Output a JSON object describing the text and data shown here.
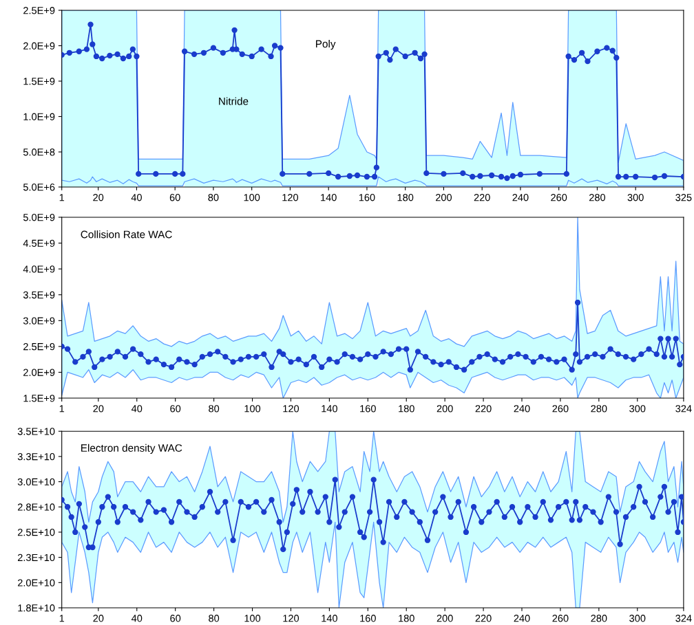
{
  "chart_data": [
    {
      "type": "line",
      "marker": "circle",
      "grid": false,
      "legend": false,
      "xlim": [
        1,
        325
      ],
      "xticks": [
        1,
        20,
        40,
        60,
        80,
        100,
        120,
        140,
        160,
        180,
        200,
        220,
        240,
        260,
        280,
        300,
        325
      ],
      "ylim": [
        5000000.0,
        2500000000.0
      ],
      "yticks": [
        {
          "value": 5000000.0,
          "label": "5.0E+6"
        },
        {
          "value": 500000000.0,
          "label": "5.0E+8"
        },
        {
          "value": 1000000000.0,
          "label": "1.0E+9"
        },
        {
          "value": 1500000000.0,
          "label": "1.5E+9"
        },
        {
          "value": 2000000000.0,
          "label": "2.0E+9"
        },
        {
          "value": 2500000000.0,
          "label": "2.5E+9"
        }
      ],
      "bands": [
        {
          "axis": "x",
          "from": 1,
          "to": 40,
          "color": "#ccffff"
        },
        {
          "axis": "x",
          "from": 65,
          "to": 115,
          "color": "#ccffff"
        },
        {
          "axis": "x",
          "from": 166,
          "to": 190,
          "color": "#ccffff"
        },
        {
          "axis": "x",
          "from": 265,
          "to": 290,
          "color": "#ccffff"
        }
      ],
      "annotations": [
        "Nitride",
        "Poly"
      ],
      "x": [
        1,
        5,
        10,
        14,
        16,
        17,
        19,
        22,
        26,
        30,
        33,
        36,
        38,
        40,
        41,
        50,
        60,
        64,
        65,
        70,
        75,
        80,
        85,
        90,
        91,
        92,
        95,
        100,
        105,
        110,
        112,
        115,
        116,
        130,
        140,
        145,
        151,
        155,
        160,
        164,
        165,
        166,
        170,
        172,
        175,
        180,
        185,
        188,
        190,
        191,
        200,
        210,
        215,
        219,
        225,
        230,
        233,
        236,
        240,
        250,
        264,
        265,
        268,
        272,
        275,
        280,
        285,
        288,
        290,
        291,
        295,
        300,
        310,
        315,
        325
      ],
      "series": [
        {
          "color": "#1a3ccc",
          "values": [
            1870000000.0,
            1900000000.0,
            1920000000.0,
            1950000000.0,
            2300000000.0,
            2020000000.0,
            1850000000.0,
            1820000000.0,
            1860000000.0,
            1880000000.0,
            1820000000.0,
            1850000000.0,
            1950000000.0,
            1850000000.0,
            190000000.0,
            190000000.0,
            190000000.0,
            190000000.0,
            1920000000.0,
            1880000000.0,
            1900000000.0,
            1970000000.0,
            1900000000.0,
            1950000000.0,
            2220000000.0,
            1950000000.0,
            1880000000.0,
            1850000000.0,
            1950000000.0,
            1850000000.0,
            2000000000.0,
            1970000000.0,
            190000000.0,
            190000000.0,
            200000000.0,
            150000000.0,
            160000000.0,
            170000000.0,
            150000000.0,
            150000000.0,
            280000000.0,
            1850000000.0,
            1900000000.0,
            1800000000.0,
            1950000000.0,
            1850000000.0,
            1900000000.0,
            1820000000.0,
            1880000000.0,
            200000000.0,
            190000000.0,
            200000000.0,
            150000000.0,
            160000000.0,
            170000000.0,
            150000000.0,
            130000000.0,
            160000000.0,
            180000000.0,
            190000000.0,
            190000000.0,
            1850000000.0,
            1800000000.0,
            1900000000.0,
            1780000000.0,
            1920000000.0,
            1970000000.0,
            1930000000.0,
            1830000000.0,
            150000000.0,
            150000000.0,
            150000000.0,
            140000000.0,
            160000000.0,
            150000000.0
          ],
          "lower": [
            100000000.0,
            80000000.0,
            120000000.0,
            60000000.0,
            100000000.0,
            150000000.0,
            80000000.0,
            120000000.0,
            70000000.0,
            100000000.0,
            50000000.0,
            110000000.0,
            80000000.0,
            60000000.0,
            20000000.0,
            20000000.0,
            20000000.0,
            20000000.0,
            80000000.0,
            120000000.0,
            60000000.0,
            100000000.0,
            80000000.0,
            120000000.0,
            100000000.0,
            70000000.0,
            110000000.0,
            60000000.0,
            120000000.0,
            80000000.0,
            100000000.0,
            70000000.0,
            20000000.0,
            20000000.0,
            20000000.0,
            20000000.0,
            20000000.0,
            20000000.0,
            20000000.0,
            20000000.0,
            20000000.0,
            150000000.0,
            80000000.0,
            100000000.0,
            120000000.0,
            60000000.0,
            100000000.0,
            80000000.0,
            50000000.0,
            20000000.0,
            20000000.0,
            20000000.0,
            20000000.0,
            20000000.0,
            20000000.0,
            20000000.0,
            20000000.0,
            20000000.0,
            20000000.0,
            20000000.0,
            20000000.0,
            100000000.0,
            60000000.0,
            120000000.0,
            70000000.0,
            100000000.0,
            50000000.0,
            90000000.0,
            60000000.0,
            20000000.0,
            20000000.0,
            20000000.0,
            20000000.0,
            20000000.0,
            20000000.0
          ],
          "upper": [
            2500000000.0,
            2500000000.0,
            2500000000.0,
            2500000000.0,
            2500000000.0,
            2500000000.0,
            2500000000.0,
            2500000000.0,
            2500000000.0,
            2500000000.0,
            2500000000.0,
            2500000000.0,
            2500000000.0,
            2500000000.0,
            400000000.0,
            400000000.0,
            400000000.0,
            400000000.0,
            2500000000.0,
            2500000000.0,
            2500000000.0,
            2500000000.0,
            2500000000.0,
            2500000000.0,
            2500000000.0,
            2500000000.0,
            2500000000.0,
            2500000000.0,
            2500000000.0,
            2500000000.0,
            2500000000.0,
            2500000000.0,
            400000000.0,
            400000000.0,
            450000000.0,
            550000000.0,
            1300000000.0,
            750000000.0,
            500000000.0,
            450000000.0,
            400000000.0,
            2500000000.0,
            2500000000.0,
            2500000000.0,
            2500000000.0,
            2500000000.0,
            2500000000.0,
            2500000000.0,
            2500000000.0,
            450000000.0,
            450000000.0,
            420000000.0,
            400000000.0,
            650000000.0,
            420000000.0,
            1050000000.0,
            450000000.0,
            1200000000.0,
            450000000.0,
            450000000.0,
            420000000.0,
            2500000000.0,
            2500000000.0,
            2500000000.0,
            2500000000.0,
            2500000000.0,
            2500000000.0,
            2500000000.0,
            2500000000.0,
            350000000.0,
            900000000.0,
            400000000.0,
            450000000.0,
            500000000.0,
            380000000.0
          ]
        }
      ]
    },
    {
      "type": "line",
      "marker": "circle",
      "grid": false,
      "legend": false,
      "title": "Collision Rate WAC",
      "xlim": [
        1,
        324
      ],
      "xticks": [
        1,
        20,
        40,
        60,
        80,
        100,
        120,
        140,
        160,
        180,
        200,
        220,
        240,
        260,
        280,
        300,
        324
      ],
      "ylim": [
        1500000000.0,
        5000000000.0
      ],
      "yticks": [
        {
          "value": 1500000000.0,
          "label": "1.5E+9"
        },
        {
          "value": 2000000000.0,
          "label": "2.0E+9"
        },
        {
          "value": 2500000000.0,
          "label": "2.5E+9"
        },
        {
          "value": 3000000000.0,
          "label": "3.0E+9"
        },
        {
          "value": 3500000000.0,
          "label": "3.5E+9"
        },
        {
          "value": 4000000000.0,
          "label": "4.0E+9"
        },
        {
          "value": 4500000000.0,
          "label": "4.5E+9"
        },
        {
          "value": 5000000000.0,
          "label": "5.0E+9"
        }
      ],
      "x": [
        1,
        4,
        8,
        12,
        15,
        18,
        22,
        26,
        30,
        34,
        38,
        42,
        46,
        50,
        54,
        58,
        62,
        66,
        70,
        74,
        78,
        82,
        86,
        90,
        94,
        98,
        102,
        106,
        110,
        114,
        116,
        120,
        124,
        128,
        132,
        136,
        140,
        144,
        148,
        152,
        156,
        160,
        164,
        168,
        172,
        176,
        180,
        182,
        186,
        190,
        194,
        198,
        202,
        206,
        210,
        214,
        218,
        222,
        226,
        230,
        234,
        238,
        242,
        246,
        250,
        254,
        258,
        262,
        266,
        268,
        269,
        270,
        274,
        278,
        282,
        286,
        290,
        294,
        298,
        302,
        306,
        310,
        312,
        314,
        316,
        318,
        320,
        322,
        324
      ],
      "series": [
        {
          "color": "#1a3ccc",
          "values": [
            2500000000.0,
            2450000000.0,
            2200000000.0,
            2300000000.0,
            2400000000.0,
            2100000000.0,
            2250000000.0,
            2300000000.0,
            2400000000.0,
            2300000000.0,
            2450000000.0,
            2350000000.0,
            2200000000.0,
            2250000000.0,
            2150000000.0,
            2100000000.0,
            2250000000.0,
            2200000000.0,
            2150000000.0,
            2300000000.0,
            2350000000.0,
            2400000000.0,
            2300000000.0,
            2200000000.0,
            2250000000.0,
            2300000000.0,
            2300000000.0,
            2350000000.0,
            2100000000.0,
            2400000000.0,
            2350000000.0,
            2200000000.0,
            2250000000.0,
            2150000000.0,
            2300000000.0,
            2100000000.0,
            2250000000.0,
            2200000000.0,
            2350000000.0,
            2300000000.0,
            2250000000.0,
            2350000000.0,
            2300000000.0,
            2400000000.0,
            2350000000.0,
            2450000000.0,
            2450000000.0,
            2050000000.0,
            2400000000.0,
            2300000000.0,
            2200000000.0,
            2150000000.0,
            2200000000.0,
            2100000000.0,
            2050000000.0,
            2200000000.0,
            2300000000.0,
            2350000000.0,
            2250000000.0,
            2200000000.0,
            2300000000.0,
            2350000000.0,
            2300000000.0,
            2200000000.0,
            2300000000.0,
            2250000000.0,
            2200000000.0,
            2250000000.0,
            2050000000.0,
            2350000000.0,
            3350000000.0,
            2200000000.0,
            2300000000.0,
            2350000000.0,
            2300000000.0,
            2450000000.0,
            2350000000.0,
            2300000000.0,
            2250000000.0,
            2350000000.0,
            2450000000.0,
            2350000000.0,
            2650000000.0,
            2300000000.0,
            2650000000.0,
            2300000000.0,
            2650000000.0,
            2150000000.0,
            2300000000.0
          ],
          "lower": [
            1550000000.0,
            2000000000.0,
            1950000000.0,
            1900000000.0,
            2050000000.0,
            1800000000.0,
            1950000000.0,
            1900000000.0,
            2000000000.0,
            1900000000.0,
            2050000000.0,
            1850000000.0,
            1900000000.0,
            1900000000.0,
            1850000000.0,
            1800000000.0,
            1900000000.0,
            1850000000.0,
            1900000000.0,
            1900000000.0,
            2000000000.0,
            2000000000.0,
            1900000000.0,
            1850000000.0,
            1950000000.0,
            1900000000.0,
            2000000000.0,
            1950000000.0,
            1700000000.0,
            1900000000.0,
            1500000000.0,
            1800000000.0,
            1850000000.0,
            1800000000.0,
            1900000000.0,
            1750000000.0,
            1800000000.0,
            1900000000.0,
            1950000000.0,
            1850000000.0,
            1900000000.0,
            1850000000.0,
            1900000000.0,
            2000000000.0,
            1900000000.0,
            2000000000.0,
            1950000000.0,
            1700000000.0,
            2000000000.0,
            1900000000.0,
            1800000000.0,
            1850000000.0,
            1750000000.0,
            1700000000.0,
            1600000000.0,
            1900000000.0,
            1950000000.0,
            2000000000.0,
            1900000000.0,
            1850000000.0,
            1900000000.0,
            1950000000.0,
            1950000000.0,
            1850000000.0,
            1900000000.0,
            1900000000.0,
            1850000000.0,
            1900000000.0,
            1750000000.0,
            1900000000.0,
            1500000000.0,
            1600000000.0,
            1900000000.0,
            1900000000.0,
            1850000000.0,
            1800000000.0,
            1700000000.0,
            1850000000.0,
            1900000000.0,
            1900000000.0,
            1950000000.0,
            1600000000.0,
            1500000000.0,
            1800000000.0,
            1600000000.0,
            1850000000.0,
            1500000000.0,
            1700000000.0,
            1900000000.0
          ],
          "upper": [
            3400000000.0,
            2700000000.0,
            2750000000.0,
            2800000000.0,
            3350000000.0,
            2600000000.0,
            2650000000.0,
            2700000000.0,
            2800000000.0,
            2750000000.0,
            2900000000.0,
            2700000000.0,
            2600000000.0,
            2650000000.0,
            2550000000.0,
            2500000000.0,
            2600000000.0,
            2550000000.0,
            2600000000.0,
            2700000000.0,
            2750000000.0,
            2650000000.0,
            2700000000.0,
            2600000000.0,
            2650000000.0,
            2700000000.0,
            2700000000.0,
            2750000000.0,
            2600000000.0,
            2850000000.0,
            3100000000.0,
            2700000000.0,
            2800000000.0,
            2600000000.0,
            2700000000.0,
            2550000000.0,
            3350000000.0,
            2700000000.0,
            2750000000.0,
            2650000000.0,
            2800000000.0,
            3350000000.0,
            2700000000.0,
            2800000000.0,
            2750000000.0,
            2800000000.0,
            2850000000.0,
            2700000000.0,
            2800000000.0,
            3200000000.0,
            2700000000.0,
            2600000000.0,
            2650000000.0,
            2550000000.0,
            2500000000.0,
            2700000000.0,
            2750000000.0,
            2800000000.0,
            2700000000.0,
            2650000000.0,
            2700000000.0,
            2800000000.0,
            2750000000.0,
            2650000000.0,
            2700000000.0,
            2750000000.0,
            2650000000.0,
            2700000000.0,
            2600000000.0,
            2800000000.0,
            5000000000.0,
            3600000000.0,
            2750000000.0,
            2800000000.0,
            3100000000.0,
            3200000000.0,
            2800000000.0,
            2700000000.0,
            2750000000.0,
            2800000000.0,
            2850000000.0,
            2900000000.0,
            3850000000.0,
            2800000000.0,
            3850000000.0,
            2800000000.0,
            4150000000.0,
            2600000000.0,
            2550000000.0
          ]
        }
      ]
    },
    {
      "type": "line",
      "marker": "circle",
      "grid": false,
      "legend": false,
      "title": "Electron density WAC",
      "xlim": [
        1,
        324
      ],
      "xticks": [
        1,
        20,
        40,
        60,
        80,
        100,
        120,
        140,
        160,
        180,
        200,
        220,
        240,
        260,
        280,
        300,
        324
      ],
      "ylim": [
        17500000000.0,
        35000000000.0
      ],
      "yticks": [
        {
          "value": 17500000000.0,
          "label": "1.8E+10"
        },
        {
          "value": 20000000000.0,
          "label": "2.0E+10"
        },
        {
          "value": 22500000000.0,
          "label": "2.3E+10"
        },
        {
          "value": 25000000000.0,
          "label": "2.5E+10"
        },
        {
          "value": 27500000000.0,
          "label": "2.8E+10"
        },
        {
          "value": 30000000000.0,
          "label": "3.0E+10"
        },
        {
          "value": 32500000000.0,
          "label": "3.3E+10"
        },
        {
          "value": 35000000000.0,
          "label": "3.5E+10"
        }
      ],
      "x": [
        1,
        4,
        6,
        8,
        10,
        13,
        15,
        17,
        20,
        22,
        25,
        28,
        30,
        34,
        38,
        42,
        46,
        50,
        54,
        58,
        62,
        66,
        70,
        74,
        78,
        82,
        86,
        90,
        94,
        98,
        102,
        106,
        110,
        114,
        116,
        118,
        121,
        123,
        126,
        130,
        134,
        138,
        140,
        143,
        145,
        148,
        152,
        156,
        158,
        161,
        163,
        166,
        168,
        171,
        175,
        179,
        183,
        187,
        191,
        195,
        199,
        203,
        207,
        211,
        215,
        219,
        223,
        227,
        231,
        235,
        239,
        243,
        247,
        251,
        255,
        259,
        263,
        266,
        268,
        270,
        273,
        277,
        281,
        285,
        289,
        291,
        294,
        298,
        301,
        304,
        308,
        312,
        314,
        316,
        319,
        321,
        323,
        324
      ],
      "series": [
        {
          "color": "#1a3ccc",
          "values": [
            28200000000.0,
            27500000000.0,
            26500000000.0,
            25000000000.0,
            27800000000.0,
            25500000000.0,
            23500000000.0,
            23500000000.0,
            26000000000.0,
            27500000000.0,
            28500000000.0,
            27500000000.0,
            26000000000.0,
            27500000000.0,
            27000000000.0,
            26200000000.0,
            28000000000.0,
            27000000000.0,
            27200000000.0,
            26000000000.0,
            28000000000.0,
            27000000000.0,
            26500000000.0,
            27500000000.0,
            29000000000.0,
            27000000000.0,
            28000000000.0,
            24200000000.0,
            28000000000.0,
            27500000000.0,
            28000000000.0,
            27000000000.0,
            28200000000.0,
            26000000000.0,
            23300000000.0,
            25000000000.0,
            27800000000.0,
            29200000000.0,
            27000000000.0,
            29000000000.0,
            27000000000.0,
            28500000000.0,
            26000000000.0,
            30200000000.0,
            25500000000.0,
            27000000000.0,
            28500000000.0,
            25000000000.0,
            24500000000.0,
            27000000000.0,
            30200000000.0,
            26000000000.0,
            24000000000.0,
            28000000000.0,
            26500000000.0,
            28000000000.0,
            27000000000.0,
            26000000000.0,
            24200000000.0,
            27000000000.0,
            28500000000.0,
            26500000000.0,
            28000000000.0,
            25000000000.0,
            27500000000.0,
            26000000000.0,
            27000000000.0,
            28000000000.0,
            26500000000.0,
            27500000000.0,
            26000000000.0,
            27500000000.0,
            26500000000.0,
            28000000000.0,
            26200000000.0,
            27500000000.0,
            28000000000.0,
            26200000000.0,
            28000000000.0,
            26200000000.0,
            27500000000.0,
            27000000000.0,
            26000000000.0,
            28500000000.0,
            27000000000.0,
            23800000000.0,
            26500000000.0,
            27500000000.0,
            29500000000.0,
            28000000000.0,
            26500000000.0,
            28500000000.0,
            29500000000.0,
            27000000000.0,
            28000000000.0,
            25000000000.0,
            28500000000.0,
            26000000000.0
          ],
          "lower": [
            24000000000.0,
            23000000000.0,
            19000000000.0,
            22000000000.0,
            25000000000.0,
            23000000000.0,
            21000000000.0,
            18000000000.0,
            23000000000.0,
            24500000000.0,
            25000000000.0,
            24000000000.0,
            23000000000.0,
            24500000000.0,
            24000000000.0,
            23000000000.0,
            25000000000.0,
            23500000000.0,
            24000000000.0,
            23000000000.0,
            25000000000.0,
            24000000000.0,
            23500000000.0,
            24000000000.0,
            25000000000.0,
            23500000000.0,
            24500000000.0,
            21000000000.0,
            25000000000.0,
            24500000000.0,
            25000000000.0,
            23000000000.0,
            25000000000.0,
            22000000000.0,
            21000000000.0,
            21000000000.0,
            24000000000.0,
            25000000000.0,
            23000000000.0,
            25000000000.0,
            19000000000.0,
            24000000000.0,
            22000000000.0,
            26000000000.0,
            17500000000.0,
            22000000000.0,
            24000000000.0,
            19000000000.0,
            18500000000.0,
            23000000000.0,
            26000000000.0,
            20000000000.0,
            17500000000.0,
            24000000000.0,
            23000000000.0,
            24500000000.0,
            23500000000.0,
            23000000000.0,
            21000000000.0,
            23500000000.0,
            25000000000.0,
            22000000000.0,
            24000000000.0,
            20000000000.0,
            24000000000.0,
            23000000000.0,
            23500000000.0,
            24500000000.0,
            23500000000.0,
            24000000000.0,
            23000000000.0,
            24000000000.0,
            23500000000.0,
            24500000000.0,
            23500000000.0,
            24000000000.0,
            24500000000.0,
            23000000000.0,
            17500000000.0,
            17500000000.0,
            24000000000.0,
            23500000000.0,
            23000000000.0,
            24500000000.0,
            23500000000.0,
            20000000000.0,
            23000000000.0,
            24000000000.0,
            25000000000.0,
            24500000000.0,
            23000000000.0,
            24000000000.0,
            25000000000.0,
            23000000000.0,
            24000000000.0,
            22000000000.0,
            24500000000.0,
            23000000000.0
          ],
          "upper": [
            29500000000.0,
            31000000000.0,
            29000000000.0,
            28000000000.0,
            31500000000.0,
            29000000000.0,
            26000000000.0,
            28000000000.0,
            29000000000.0,
            30500000000.0,
            32000000000.0,
            31000000000.0,
            28500000000.0,
            30000000000.0,
            30000000000.0,
            29000000000.0,
            30500000000.0,
            29500000000.0,
            29500000000.0,
            31000000000.0,
            30000000000.0,
            30500000000.0,
            29000000000.0,
            31000000000.0,
            33500000000.0,
            29500000000.0,
            30500000000.0,
            28000000000.0,
            31000000000.0,
            30500000000.0,
            30000000000.0,
            30000000000.0,
            31000000000.0,
            29000000000.0,
            26000000000.0,
            27500000000.0,
            35000000000.0,
            32000000000.0,
            30000000000.0,
            32000000000.0,
            31000000000.0,
            32000000000.0,
            35000000000.0,
            35000000000.0,
            29000000000.0,
            31000000000.0,
            31500000000.0,
            29000000000.0,
            33000000000.0,
            31000000000.0,
            35000000000.0,
            31000000000.0,
            32000000000.0,
            30500000000.0,
            29000000000.0,
            30500000000.0,
            31000000000.0,
            29500000000.0,
            27000000000.0,
            29500000000.0,
            31000000000.0,
            29000000000.0,
            30500000000.0,
            27500000000.0,
            30500000000.0,
            28500000000.0,
            29500000000.0,
            31000000000.0,
            29000000000.0,
            30500000000.0,
            28500000000.0,
            30000000000.0,
            29000000000.0,
            31000000000.0,
            29000000000.0,
            30000000000.0,
            33000000000.0,
            29000000000.0,
            35000000000.0,
            35000000000.0,
            30000000000.0,
            29500000000.0,
            29000000000.0,
            31000000000.0,
            30500000000.0,
            27000000000.0,
            29500000000.0,
            30000000000.0,
            32000000000.0,
            31000000000.0,
            30000000000.0,
            33000000000.0,
            34000000000.0,
            30000000000.0,
            31500000000.0,
            27500000000.0,
            32000000000.0,
            29500000000.0
          ]
        }
      ]
    }
  ]
}
